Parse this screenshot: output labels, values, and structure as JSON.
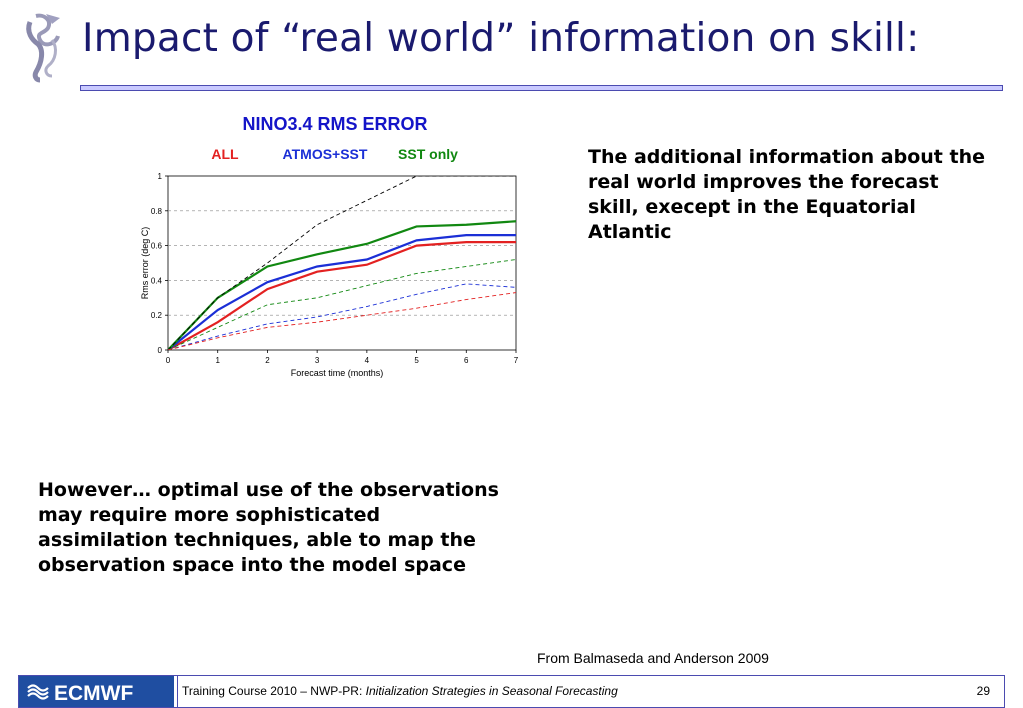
{
  "slide": {
    "title": "Impact of “real world” information on skill:"
  },
  "chart_data": {
    "type": "line",
    "title": "NINO3.4 RMS ERROR",
    "legend": [
      {
        "label": "ALL",
        "color": "#e32121"
      },
      {
        "label": "ATMOS+SST",
        "color": "#1b2fd6"
      },
      {
        "label": "SST only",
        "color": "#118811"
      }
    ],
    "legend_placement": "top",
    "xlabel": "Forecast time (months)",
    "ylabel": "Rms error (deg C)",
    "xlim": [
      0,
      7
    ],
    "ylim": [
      0,
      1
    ],
    "xticks": [
      "0",
      "1",
      "2",
      "3",
      "4",
      "5",
      "6",
      "7"
    ],
    "yticks": [
      "0",
      "0.2",
      "0.4",
      "0.6",
      "0.8",
      "1"
    ],
    "grid": "horizontal dashed",
    "x": [
      0,
      1,
      2,
      3,
      4,
      5,
      6,
      7
    ],
    "series": [
      {
        "name": "ALL",
        "color": "#e32121",
        "style": "solid",
        "values": [
          0,
          0.16,
          0.35,
          0.45,
          0.49,
          0.6,
          0.62,
          0.62
        ]
      },
      {
        "name": "ATMOS+SST",
        "color": "#1b2fd6",
        "style": "solid",
        "values": [
          0,
          0.23,
          0.39,
          0.48,
          0.52,
          0.63,
          0.66,
          0.66
        ]
      },
      {
        "name": "SST only",
        "color": "#118811",
        "style": "solid",
        "values": [
          0,
          0.3,
          0.48,
          0.55,
          0.61,
          0.71,
          0.72,
          0.74
        ]
      },
      {
        "color": "#000000",
        "style": "dashed",
        "values": [
          0,
          0.3,
          0.5,
          0.72,
          0.86,
          1.0,
          1.0,
          1.0
        ]
      },
      {
        "color": "#118811",
        "style": "dashed",
        "values": [
          0,
          0.13,
          0.26,
          0.3,
          0.37,
          0.44,
          0.48,
          0.52
        ]
      },
      {
        "color": "#1b2fd6",
        "style": "dashed",
        "values": [
          0,
          0.08,
          0.15,
          0.19,
          0.25,
          0.32,
          0.38,
          0.36
        ]
      },
      {
        "color": "#e32121",
        "style": "dashed",
        "values": [
          0,
          0.07,
          0.13,
          0.16,
          0.2,
          0.24,
          0.29,
          0.33
        ]
      }
    ]
  },
  "text": {
    "right": "The additional information about the real world improves the forecast skill, execept in the Equatorial Atlantic",
    "left": "However… optimal use of the observations may require more sophisticated assimilation techniques, able to map the observation space into the model space",
    "source": "From Balmaseda and Anderson 2009"
  },
  "footer": {
    "logo_text": "ECMWF",
    "course_prefix": "Training Course 2010 – NWP-PR: ",
    "course_title": "Initialization Strategies in Seasonal Forecasting",
    "page_number": "29"
  },
  "colors": {
    "title": "#1a1a6e",
    "chart_title": "#1414c8",
    "rule_fill": "#c9c9ff",
    "rule_border": "#4b4bb0",
    "footer_logo_bg": "#1f4ea1"
  },
  "icons": {
    "top_logo": "ecmwf-swirl-logo",
    "footer_logo": "ecmwf-logo"
  }
}
